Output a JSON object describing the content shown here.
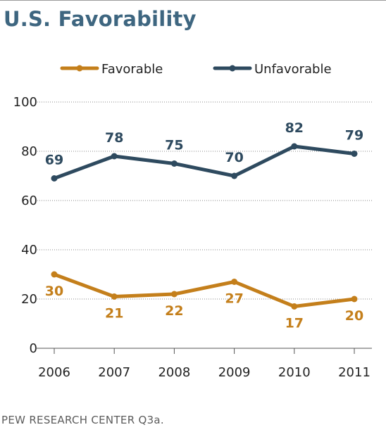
{
  "header": {
    "title": "U.S. Favorability"
  },
  "footer": {
    "source": "PEW RESEARCH CENTER Q3a."
  },
  "chart_data": {
    "type": "line",
    "title": "U.S. Favorability",
    "x": [
      "2006",
      "2007",
      "2008",
      "2009",
      "2010",
      "2011"
    ],
    "ylim": [
      0,
      100
    ],
    "yticks": [
      0,
      20,
      40,
      60,
      80,
      100
    ],
    "grid": "horizontal-dotted",
    "legend_position": "top",
    "series": [
      {
        "name": "Favorable",
        "color": "#c47f1b",
        "values": [
          30,
          21,
          22,
          27,
          17,
          20
        ],
        "labels": [
          "30",
          "21",
          "22",
          "27",
          "17",
          "20"
        ]
      },
      {
        "name": "Unfavorable",
        "color": "#2e4a5f",
        "values": [
          69,
          78,
          75,
          70,
          82,
          79
        ],
        "labels": [
          "69",
          "78",
          "75",
          "70",
          "82",
          "79"
        ]
      }
    ]
  }
}
